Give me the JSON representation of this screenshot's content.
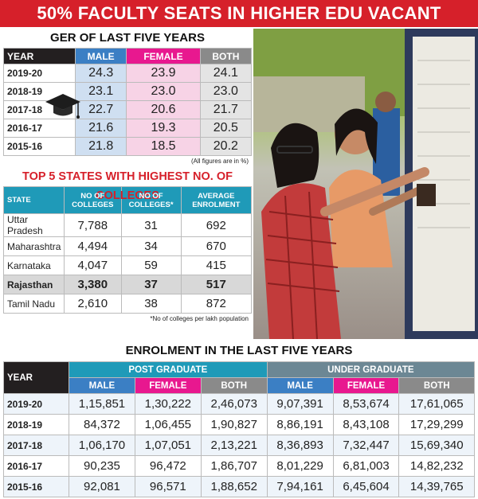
{
  "banner": "50% FACULTY SEATS IN HIGHER EDU VACANT",
  "ger": {
    "title": "GER OF LAST FIVE YEARS",
    "headers": [
      "YEAR",
      "MALE",
      "FEMALE",
      "BOTH"
    ],
    "rows": [
      [
        "2019-20",
        "24.3",
        "23.9",
        "24.1"
      ],
      [
        "2018-19",
        "23.1",
        "23.0",
        "23.0"
      ],
      [
        "2017-18",
        "22.7",
        "20.6",
        "21.7"
      ],
      [
        "2016-17",
        "21.6",
        "19.3",
        "20.5"
      ],
      [
        "2015-16",
        "21.8",
        "18.5",
        "20.2"
      ]
    ],
    "note": "(All figures are in %)"
  },
  "states": {
    "title": "TOP 5 STATES WITH HIGHEST NO. OF COLLEGES",
    "headers": [
      "STATE",
      "NO OF COLLEGES",
      "NO OF COLLEGES*",
      "AVERAGE ENROLMENT"
    ],
    "rows": [
      [
        "Uttar Pradesh",
        "7,788",
        "31",
        "692"
      ],
      [
        "Maharashtra",
        "4,494",
        "34",
        "670"
      ],
      [
        "Karnataka",
        "4,047",
        "59",
        "415"
      ],
      [
        "Rajasthan",
        "3,380",
        "37",
        "517"
      ],
      [
        "Tamil Nadu",
        "2,610",
        "38",
        "872"
      ]
    ],
    "note": "*No of colleges per lakh population"
  },
  "enrolment": {
    "title": "ENROLMENT IN THE LAST FIVE YEARS",
    "year_label": "YEAR",
    "pg_label": "POST GRADUATE",
    "ug_label": "UNDER GRADUATE",
    "sub_headers": [
      "MALE",
      "FEMALE",
      "BOTH",
      "MALE",
      "FEMALE",
      "BOTH"
    ],
    "rows": [
      [
        "2019-20",
        "1,15,851",
        "1,30,222",
        "2,46,073",
        "9,07,391",
        "8,53,674",
        "17,61,065"
      ],
      [
        "2018-19",
        "84,372",
        "1,06,455",
        "1,90,827",
        "8,86,191",
        "8,43,108",
        "17,29,299"
      ],
      [
        "2017-18",
        "1,06,170",
        "1,07,051",
        "2,13,221",
        "8,36,893",
        "7,32,447",
        "15,69,340"
      ],
      [
        "2016-17",
        "90,235",
        "96,472",
        "1,86,707",
        "8,01,229",
        "6,81,003",
        "14,82,232"
      ],
      [
        "2015-16",
        "92,081",
        "96,571",
        "1,88,652",
        "7,94,161",
        "6,45,604",
        "14,39,765"
      ]
    ]
  }
}
